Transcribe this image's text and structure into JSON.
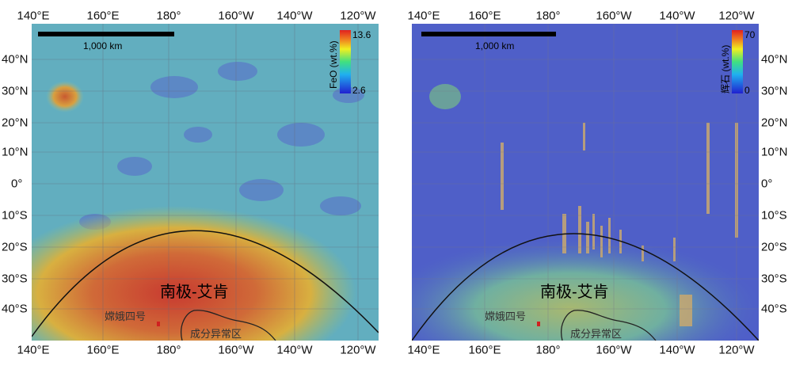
{
  "left_map": {
    "scale_label": "1,000 km",
    "colorbar": {
      "label": "FeO (wt.%)",
      "max": "13.6",
      "min": "2.6",
      "colors": [
        "#2020d0",
        "#20b0f0",
        "#40e080",
        "#f0f020",
        "#f08020",
        "#e02020"
      ]
    },
    "region_label": "南极-艾肯",
    "site_label": "嫦娥四号",
    "anomaly_label": "成分异常区"
  },
  "right_map": {
    "scale_label": "1,000 km",
    "colorbar": {
      "label": "辉石 (wt.%)",
      "max": "70",
      "min": "0",
      "colors": [
        "#2020d0",
        "#20b0f0",
        "#40e080",
        "#f0f020",
        "#f08020",
        "#e02020"
      ]
    },
    "region_label": "南极-艾肯",
    "site_label": "嫦娥四号",
    "anomaly_label": "成分异常区"
  },
  "lon_labels": [
    "140°E",
    "160°E",
    "180°",
    "160°W",
    "140°W",
    "120°W"
  ],
  "lat_labels": [
    "40°N",
    "30°N",
    "20°N",
    "10°N",
    "0°",
    "10°S",
    "20°S",
    "30°S",
    "40°S"
  ]
}
